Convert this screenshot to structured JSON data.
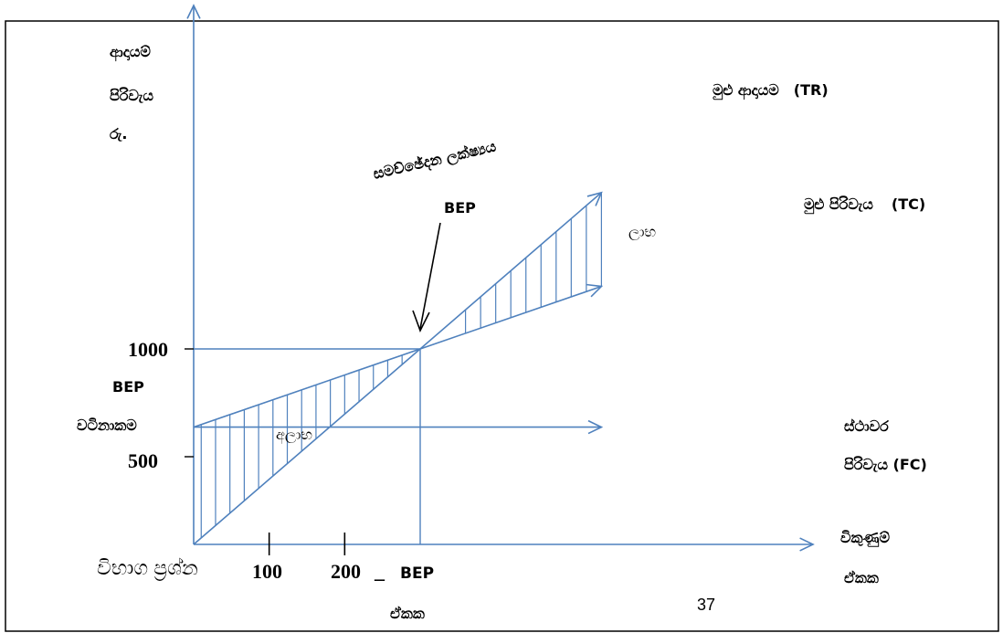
{
  "chart_data": {
    "type": "line",
    "title": "",
    "ylabel_lines": [
      "ආදායම්",
      "පිරිවැය",
      "රු."
    ],
    "xlabel_lines": [
      "විකුණුම්",
      "ඒකක"
    ],
    "x_ticks": [
      "100",
      "200",
      "BEP"
    ],
    "x_tick_sublabel": "ඒකක",
    "y_ticks": [
      "1000",
      "500"
    ],
    "series": [
      {
        "name": "මුළු ආදායම (TR)",
        "name_parts": [
          "මුළු ආදායම",
          "(TR)"
        ],
        "x": [
          0,
          300,
          540
        ],
        "y": [
          0,
          1000,
          1800
        ]
      },
      {
        "name": "මුළු පිරිවැය (TC)",
        "name_parts": [
          "මුළු පිරිවැය",
          "(TC)"
        ],
        "x": [
          0,
          300,
          540
        ],
        "y": [
          600,
          1000,
          1320
        ]
      },
      {
        "name": "ස්ථාවර පිරිවැය (FC)",
        "name_lines": [
          "ස්ථාවර",
          "පිරිවැය (FC)"
        ],
        "x": [
          0,
          540
        ],
        "y": [
          600,
          600
        ]
      }
    ],
    "bep": {
      "x": 300,
      "y": 1000,
      "label": "BEP"
    },
    "annotations": {
      "breakeven_point": "සමච්ඡේදන ලක්ෂ්‍යය",
      "bep_value_lines": [
        "BEP",
        "වටිනාකම"
      ],
      "profit": "ලාභ",
      "loss": "අලාභ"
    }
  },
  "footer": {
    "overlay_text": "විභාග ප්‍රශ්න",
    "page_number": "37"
  },
  "colors": {
    "line": "#4f81bd",
    "border": "#000000",
    "text": "#000000"
  }
}
